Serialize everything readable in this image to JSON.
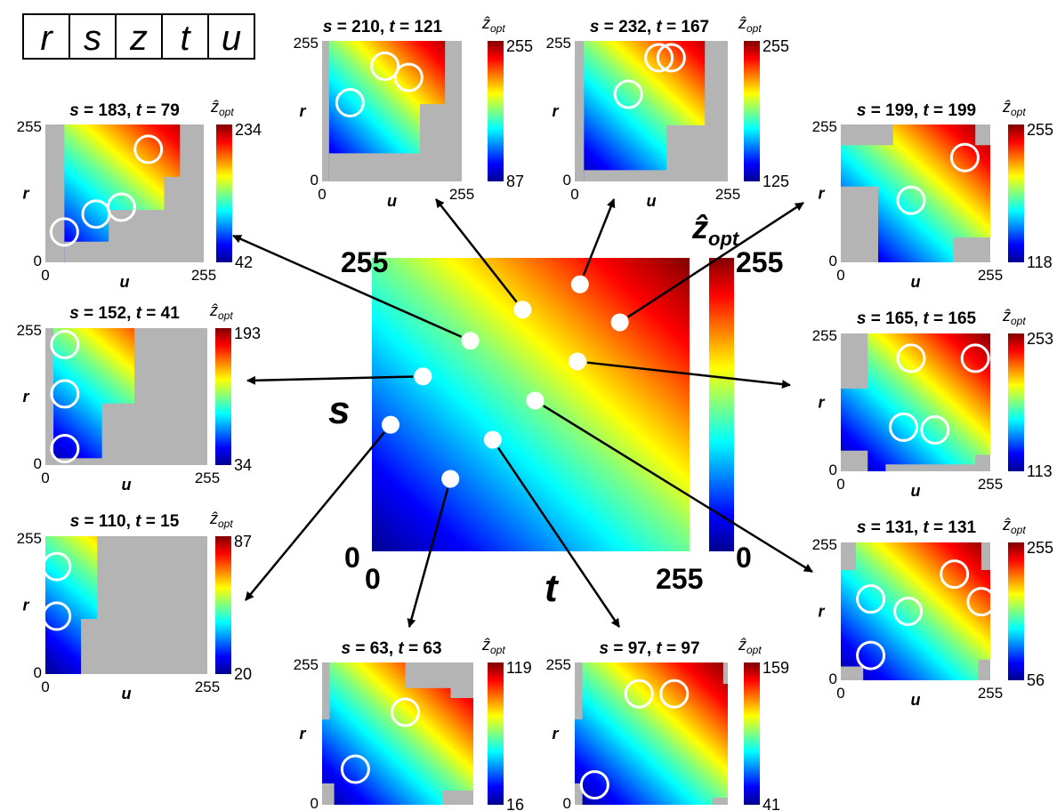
{
  "legend_letters": [
    "r",
    "s",
    "z",
    "t",
    "u"
  ],
  "main": {
    "ylabel": "s",
    "xlabel": "t",
    "y_max": "255",
    "y_min": "0",
    "x_min": "0",
    "x_max": "255",
    "colorbar_title": "ẑ",
    "colorbar_title_sub": "opt",
    "cb_max": "255",
    "cb_min": "0",
    "points": [
      {
        "s": 110,
        "t": 15
      },
      {
        "s": 152,
        "t": 41
      },
      {
        "s": 183,
        "t": 79
      },
      {
        "s": 210,
        "t": 121
      },
      {
        "s": 232,
        "t": 167
      },
      {
        "s": 199,
        "t": 199
      },
      {
        "s": 165,
        "t": 165
      },
      {
        "s": 131,
        "t": 131
      },
      {
        "s": 97,
        "t": 97
      },
      {
        "s": 63,
        "t": 63
      }
    ]
  },
  "panel_common": {
    "xlabel": "u",
    "ylabel": "r",
    "tick_0": "0",
    "tick_255": "255",
    "cb_title": "ẑ",
    "cb_title_sub": "opt"
  },
  "panels": [
    {
      "id": "s183-t79",
      "s_label": "s",
      "s": "183",
      "t_label": "t",
      "t": "79",
      "cb_max": "234",
      "cb_min": "42",
      "circles": [
        [
          0.12,
          0.22
        ],
        [
          0.32,
          0.35
        ],
        [
          0.48,
          0.4
        ],
        [
          0.65,
          0.82
        ]
      ]
    },
    {
      "id": "s210-t121",
      "s_label": "s",
      "s": "210",
      "t_label": "t",
      "t": "121",
      "cb_max": "255",
      "cb_min": "87",
      "circles": [
        [
          0.2,
          0.56
        ],
        [
          0.45,
          0.82
        ],
        [
          0.62,
          0.74
        ]
      ]
    },
    {
      "id": "s232-t167",
      "s_label": "s",
      "s": "232",
      "t_label": "t",
      "t": "167",
      "cb_max": "255",
      "cb_min": "125",
      "circles": [
        [
          0.35,
          0.62
        ],
        [
          0.55,
          0.88
        ],
        [
          0.63,
          0.88
        ]
      ]
    },
    {
      "id": "s199-t199",
      "s_label": "s",
      "s": "199",
      "t_label": "t",
      "t": "199",
      "cb_max": "255",
      "cb_min": "118",
      "circles": [
        [
          0.47,
          0.45
        ],
        [
          0.83,
          0.76
        ]
      ]
    },
    {
      "id": "s152-t41",
      "s_label": "s",
      "s": "152",
      "t_label": "t",
      "t": "41",
      "cb_max": "193",
      "cb_min": "34",
      "circles": [
        [
          0.12,
          0.12
        ],
        [
          0.12,
          0.52
        ],
        [
          0.12,
          0.88
        ]
      ]
    },
    {
      "id": "s165-t165",
      "s_label": "s",
      "s": "165",
      "t_label": "t",
      "t": "165",
      "cb_max": "253",
      "cb_min": "113",
      "circles": [
        [
          0.42,
          0.32
        ],
        [
          0.63,
          0.3
        ],
        [
          0.47,
          0.82
        ],
        [
          0.9,
          0.82
        ]
      ]
    },
    {
      "id": "s110-t15",
      "s_label": "s",
      "s": "110",
      "t_label": "t",
      "t": "15",
      "cb_max": "87",
      "cb_min": "20",
      "circles": [
        [
          0.07,
          0.42
        ],
        [
          0.07,
          0.78
        ]
      ]
    },
    {
      "id": "s131-t131",
      "s_label": "s",
      "s": "131",
      "t_label": "t",
      "t": "131",
      "cb_max": "255",
      "cb_min": "56",
      "circles": [
        [
          0.2,
          0.18
        ],
        [
          0.2,
          0.59
        ],
        [
          0.45,
          0.5
        ],
        [
          0.76,
          0.77
        ],
        [
          0.94,
          0.57
        ]
      ]
    },
    {
      "id": "s63-t63",
      "s_label": "s",
      "s": "63",
      "t_label": "t",
      "t": "63",
      "cb_max": "119",
      "cb_min": "16",
      "circles": [
        [
          0.22,
          0.25
        ],
        [
          0.55,
          0.65
        ]
      ]
    },
    {
      "id": "s97-t97",
      "s_label": "s",
      "s": "97",
      "t_label": "t",
      "t": "97",
      "cb_max": "159",
      "cb_min": "41",
      "circles": [
        [
          0.13,
          0.14
        ],
        [
          0.42,
          0.78
        ],
        [
          0.65,
          0.78
        ]
      ]
    }
  ],
  "colors": {
    "gray_mask": "#b4b4b4",
    "dot": "#ffffff",
    "arrow": "#000000"
  }
}
